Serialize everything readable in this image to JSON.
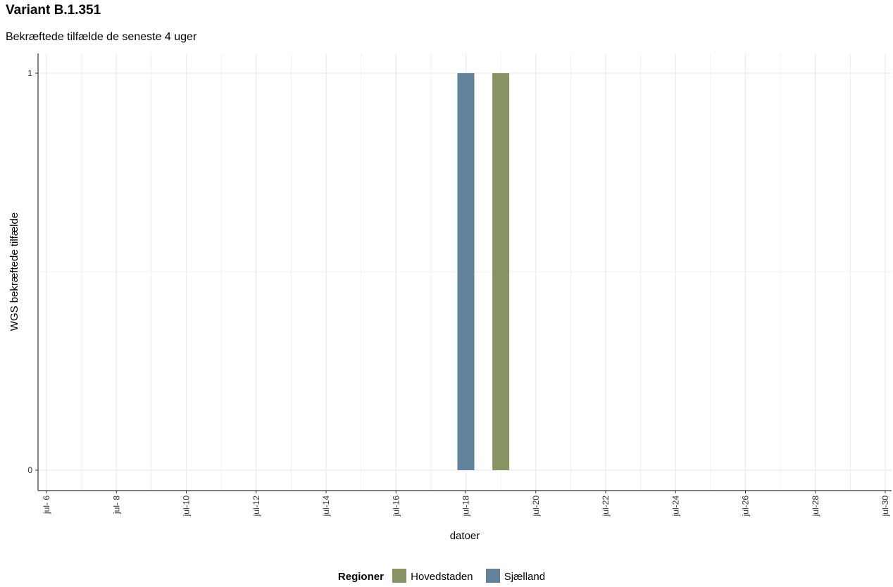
{
  "chart_data": {
    "type": "bar",
    "title": "Variant B.1.351",
    "subtitle": "Bekræftede tilfælde de seneste 4 uger",
    "xlabel": "datoer",
    "ylabel": "WGS bekræftede tilfælde",
    "x_tick_labels": [
      "jul- 6",
      "jul- 8",
      "jul-10",
      "jul-12",
      "jul-14",
      "jul-16",
      "jul-18",
      "jul-20",
      "jul-22",
      "jul-24",
      "jul-26",
      "jul-28",
      "jul-30"
    ],
    "x_tick_days": [
      6,
      8,
      10,
      12,
      14,
      16,
      18,
      20,
      22,
      24,
      26,
      28,
      30
    ],
    "xlim_days": [
      6,
      30
    ],
    "y_ticks": [
      0,
      1
    ],
    "ylim": [
      0,
      1
    ],
    "grid": true,
    "bars": [
      {
        "day": 18,
        "value": 1,
        "series": "Sjælland"
      },
      {
        "day": 19,
        "value": 1,
        "series": "Hovedstaden"
      }
    ],
    "series": [
      {
        "name": "Hovedstaden",
        "color": "#879360"
      },
      {
        "name": "Sjælland",
        "color": "#60829b"
      }
    ],
    "legend": {
      "title": "Regioner",
      "position": "bottom"
    }
  }
}
